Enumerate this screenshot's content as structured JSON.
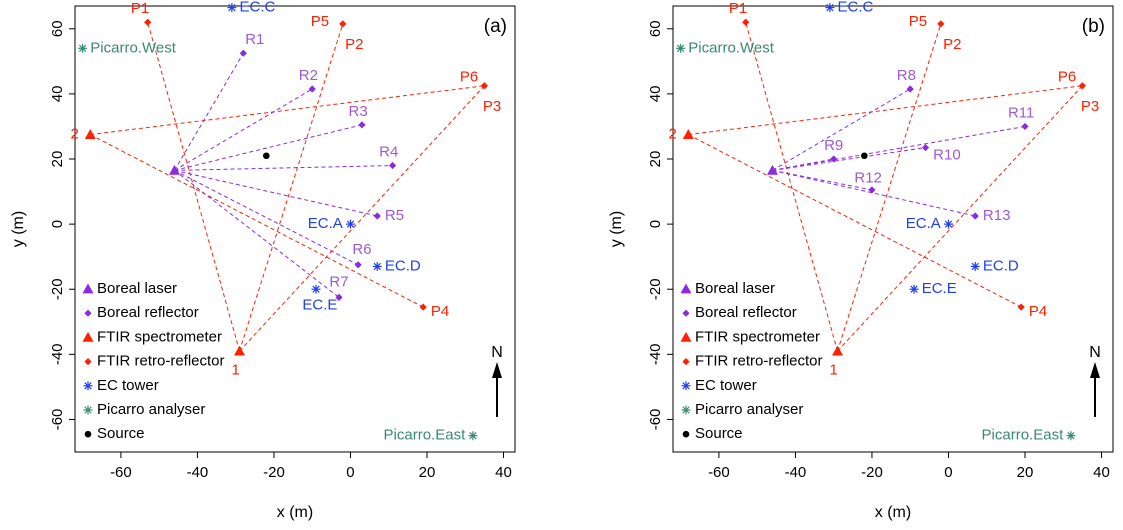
{
  "colors": {
    "laser": "#8a2be2",
    "laser_light": "#a05ad6",
    "ftir": "#ff2000",
    "ec": "#1f3ff2",
    "picarro": "#3a8a6e",
    "source": "#000000",
    "arrow": "#000000"
  },
  "chart_data": [
    {
      "type": "scatter",
      "title": "(a)",
      "xlabel": "x (m)",
      "ylabel": "y (m)",
      "xlim": [
        -72,
        43
      ],
      "ylim": [
        -70,
        67
      ],
      "xticks": [
        -60,
        -40,
        -20,
        0,
        20,
        40
      ],
      "yticks": [
        -60,
        -40,
        -20,
        0,
        20,
        40,
        60
      ],
      "north_label": "N",
      "legend": [
        {
          "label": "Boreal laser",
          "marker": "triangle",
          "color": "#8a2be2"
        },
        {
          "label": "Boreal reflector",
          "marker": "diamond",
          "color": "#8a2be2"
        },
        {
          "label": "FTIR spectrometer",
          "marker": "triangle",
          "color": "#ff2000"
        },
        {
          "label": "FTIR retro-reflector",
          "marker": "diamond",
          "color": "#ff2000"
        },
        {
          "label": "EC tower",
          "marker": "asterisk",
          "color": "#1f3ff2"
        },
        {
          "label": "Picarro analyser",
          "marker": "asterisk",
          "color": "#3a8a6e"
        },
        {
          "label": "Source",
          "marker": "circle",
          "color": "#000000"
        }
      ],
      "lasers": [
        {
          "x": -46,
          "y": 16.5
        }
      ],
      "reflectors": [
        {
          "name": "R1",
          "x": -28,
          "y": 52.5,
          "lx": -25,
          "ly": 56.5,
          "anchor": "middle"
        },
        {
          "name": "R2",
          "x": -10,
          "y": 41.5,
          "lx": -11,
          "ly": 45.5,
          "anchor": "middle"
        },
        {
          "name": "R3",
          "x": 3,
          "y": 30.5,
          "lx": 2,
          "ly": 34.5,
          "anchor": "middle"
        },
        {
          "name": "R4",
          "x": 11,
          "y": 18,
          "lx": 10,
          "ly": 22,
          "anchor": "middle"
        },
        {
          "name": "R5",
          "x": 7,
          "y": 2.5,
          "lx": 9,
          "ly": 2.5,
          "anchor": "start"
        },
        {
          "name": "R6",
          "x": 2,
          "y": -12.5,
          "lx": 3,
          "ly": -8,
          "anchor": "middle"
        },
        {
          "name": "R7",
          "x": -3,
          "y": -22.5,
          "lx": -3,
          "ly": -18,
          "anchor": "middle"
        }
      ],
      "ftir": [
        {
          "name": "2",
          "x": -68,
          "y": 27.5,
          "lx": -71,
          "ly": 27.5,
          "anchor": "end"
        },
        {
          "name": "1",
          "x": -29,
          "y": -39,
          "lx": -30,
          "ly": -45,
          "anchor": "middle"
        }
      ],
      "retro": [
        {
          "name": "P1",
          "x": -53,
          "y": 62,
          "lx": -55,
          "ly": 66,
          "anchor": "middle"
        },
        {
          "name": "P5",
          "x": -2,
          "y": 61.5,
          "lx": -8,
          "ly": 62,
          "anchor": "middle"
        },
        {
          "name": "P6",
          "x": 35,
          "y": 42.5,
          "lx": 31,
          "ly": 45,
          "anchor": "middle"
        },
        {
          "name": "P4",
          "x": 19,
          "y": -25.5,
          "lx": 21,
          "ly": -27,
          "anchor": "start"
        }
      ],
      "retro_labels": [
        {
          "name": "P2",
          "lx": 1,
          "ly": 55,
          "anchor": "middle"
        },
        {
          "name": "P3",
          "lx": 37,
          "ly": 36,
          "anchor": "middle"
        }
      ],
      "ec": [
        {
          "name": "EC.C",
          "x": -31,
          "y": 66.5,
          "lx": -29,
          "ly": 66.5,
          "anchor": "start"
        },
        {
          "name": "EC.A",
          "x": 0,
          "y": 0,
          "lx": -2,
          "ly": 0,
          "anchor": "end"
        },
        {
          "name": "EC.D",
          "x": 7,
          "y": -13,
          "lx": 9,
          "ly": -13,
          "anchor": "start"
        },
        {
          "name": "EC.E",
          "x": -9,
          "y": -20,
          "lx": -8,
          "ly": -25,
          "anchor": "middle"
        }
      ],
      "picarro": [
        {
          "name": "Picarro.West",
          "x": -70,
          "y": 54,
          "lx": -68,
          "ly": 54,
          "anchor": "start"
        },
        {
          "name": "Picarro.East",
          "x": 32,
          "y": -65,
          "lx": 30,
          "ly": -65,
          "anchor": "end"
        }
      ],
      "source": [
        {
          "x": -22,
          "y": 21
        }
      ],
      "laser_beams": [
        [
          -46,
          16.5,
          -28,
          52.5
        ],
        [
          -46,
          16.5,
          -10,
          41.5
        ],
        [
          -46,
          16.5,
          3,
          30.5
        ],
        [
          -46,
          16.5,
          11,
          18
        ],
        [
          -46,
          16.5,
          7,
          2.5
        ],
        [
          -46,
          16.5,
          2,
          -12.5
        ],
        [
          -46,
          16.5,
          -3,
          -22.5
        ]
      ],
      "ftir_beams": [
        [
          -68,
          27.5,
          35,
          42.5
        ],
        [
          -68,
          27.5,
          19,
          -25.5
        ],
        [
          -29,
          -39,
          -53,
          62
        ],
        [
          -29,
          -39,
          -2,
          61.5
        ],
        [
          -29,
          -39,
          35,
          42.5
        ]
      ]
    },
    {
      "type": "scatter",
      "title": "(b)",
      "xlabel": "x (m)",
      "ylabel": "y (m)",
      "xlim": [
        -72,
        43
      ],
      "ylim": [
        -70,
        67
      ],
      "xticks": [
        -60,
        -40,
        -20,
        0,
        20,
        40
      ],
      "yticks": [
        -60,
        -40,
        -20,
        0,
        20,
        40,
        60
      ],
      "north_label": "N",
      "legend": [
        {
          "label": "Boreal laser",
          "marker": "triangle",
          "color": "#8a2be2"
        },
        {
          "label": "Boreal reflector",
          "marker": "diamond",
          "color": "#8a2be2"
        },
        {
          "label": "FTIR spectrometer",
          "marker": "triangle",
          "color": "#ff2000"
        },
        {
          "label": "FTIR retro-reflector",
          "marker": "diamond",
          "color": "#ff2000"
        },
        {
          "label": "EC tower",
          "marker": "asterisk",
          "color": "#1f3ff2"
        },
        {
          "label": "Picarro analyser",
          "marker": "asterisk",
          "color": "#3a8a6e"
        },
        {
          "label": "Source",
          "marker": "circle",
          "color": "#000000"
        }
      ],
      "lasers": [
        {
          "x": -46,
          "y": 16.5
        }
      ],
      "reflectors": [
        {
          "name": "R8",
          "x": -10,
          "y": 41.5,
          "lx": -11,
          "ly": 45.5,
          "anchor": "middle"
        },
        {
          "name": "R11",
          "x": 20,
          "y": 30,
          "lx": 19,
          "ly": 34,
          "anchor": "middle"
        },
        {
          "name": "R9",
          "x": -30,
          "y": 20,
          "lx": -30,
          "ly": 24,
          "anchor": "middle"
        },
        {
          "name": "R10",
          "x": -6,
          "y": 23.5,
          "lx": -4,
          "ly": 21,
          "anchor": "start"
        },
        {
          "name": "R12",
          "x": -20,
          "y": 10.5,
          "lx": -21,
          "ly": 14,
          "anchor": "middle"
        },
        {
          "name": "R13",
          "x": 7,
          "y": 2.5,
          "lx": 9,
          "ly": 2.5,
          "anchor": "start"
        }
      ],
      "ftir": [
        {
          "name": "2",
          "x": -68,
          "y": 27.5,
          "lx": -71,
          "ly": 27.5,
          "anchor": "end"
        },
        {
          "name": "1",
          "x": -29,
          "y": -39,
          "lx": -30,
          "ly": -45,
          "anchor": "middle"
        }
      ],
      "retro": [
        {
          "name": "P1",
          "x": -53,
          "y": 62,
          "lx": -55,
          "ly": 66,
          "anchor": "middle"
        },
        {
          "name": "P5",
          "x": -2,
          "y": 61.5,
          "lx": -8,
          "ly": 62,
          "anchor": "middle"
        },
        {
          "name": "P6",
          "x": 35,
          "y": 42.5,
          "lx": 31,
          "ly": 45,
          "anchor": "middle"
        },
        {
          "name": "P4",
          "x": 19,
          "y": -25.5,
          "lx": 21,
          "ly": -27,
          "anchor": "start"
        }
      ],
      "retro_labels": [
        {
          "name": "P2",
          "lx": 1,
          "ly": 55,
          "anchor": "middle"
        },
        {
          "name": "P3",
          "lx": 37,
          "ly": 36,
          "anchor": "middle"
        }
      ],
      "ec": [
        {
          "name": "EC.C",
          "x": -31,
          "y": 66.5,
          "lx": -29,
          "ly": 66.5,
          "anchor": "start"
        },
        {
          "name": "EC.A",
          "x": 0,
          "y": 0,
          "lx": -2,
          "ly": 0,
          "anchor": "end"
        },
        {
          "name": "EC.D",
          "x": 7,
          "y": -13,
          "lx": 9,
          "ly": -13,
          "anchor": "start"
        },
        {
          "name": "EC.E",
          "x": -9,
          "y": -20,
          "lx": -7,
          "ly": -20,
          "anchor": "start"
        }
      ],
      "picarro": [
        {
          "name": "Picarro.West",
          "x": -70,
          "y": 54,
          "lx": -68,
          "ly": 54,
          "anchor": "start"
        },
        {
          "name": "Picarro.East",
          "x": 32,
          "y": -65,
          "lx": 30,
          "ly": -65,
          "anchor": "end"
        }
      ],
      "source": [
        {
          "x": -22,
          "y": 21
        }
      ],
      "laser_beams": [
        [
          -46,
          16.5,
          -10,
          41.5
        ],
        [
          -46,
          16.5,
          20,
          30
        ],
        [
          -46,
          16.5,
          -30,
          20
        ],
        [
          -46,
          16.5,
          -6,
          23.5
        ],
        [
          -46,
          16.5,
          -20,
          10.5
        ],
        [
          -46,
          16.5,
          7,
          2.5
        ]
      ],
      "ftir_beams": [
        [
          -68,
          27.5,
          35,
          42.5
        ],
        [
          -68,
          27.5,
          19,
          -25.5
        ],
        [
          -29,
          -39,
          -53,
          62
        ],
        [
          -29,
          -39,
          -2,
          61.5
        ],
        [
          -29,
          -39,
          35,
          42.5
        ]
      ]
    }
  ]
}
